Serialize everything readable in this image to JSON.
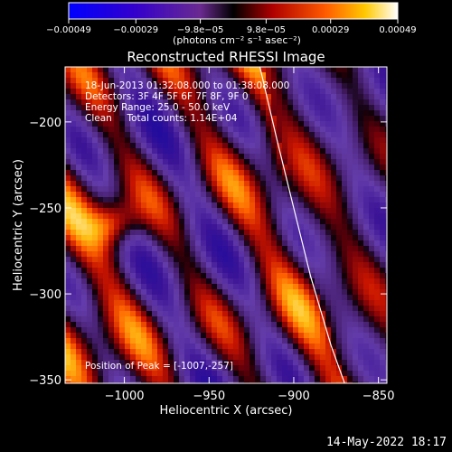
{
  "chart_data": {
    "type": "heatmap",
    "title": "Reconstructed RHESSI Image",
    "xlabel": "Heliocentric X (arcsec)",
    "ylabel": "Heliocentric Y (arcsec)",
    "xlim": [
      -1035,
      -845
    ],
    "ylim": [
      -352,
      -168
    ],
    "x_ticks": [
      -1000,
      -950,
      -900,
      -850
    ],
    "x_tick_labels": [
      "−1000",
      "−950",
      "−900",
      "−850"
    ],
    "y_ticks": [
      -350,
      -300,
      -250,
      -200
    ],
    "y_tick_labels": [
      "−350",
      "−300",
      "−250",
      "−200"
    ],
    "colorbar": {
      "range": [
        -0.00049,
        0.00049
      ],
      "ticks": [
        -0.00049,
        -0.00029,
        -9.8e-05,
        9.8e-05,
        0.00029,
        0.00049
      ],
      "tick_labels": [
        "−0.00049",
        "−0.00029",
        "−9.8e−05",
        "9.8e−05",
        "0.00029",
        "0.00049"
      ],
      "unit_label": "(photons cm⁻² s⁻¹ asec⁻²)"
    },
    "annotations": [
      "18-Jun-2013 01:32:08.000 to 01:38:08.000",
      "Detectors: 3F 4F 5F 6F 7F 8F, 9F 0",
      "Energy Range: 25.0 - 50.0 keV",
      "Clean     Total counts: 1.14E+04"
    ],
    "peak_label": "Position of Peak = [-1007,-257]",
    "peak_position": [
      -1007,
      -257
    ],
    "limb_curve": [
      [
        -920,
        -168
      ],
      [
        -910,
        -210
      ],
      [
        -900,
        -250
      ],
      [
        -890,
        -290
      ],
      [
        -878,
        -330
      ],
      [
        -870,
        -352
      ]
    ],
    "colors": {
      "background": "#000000",
      "limb": "#ffffff"
    }
  },
  "footer": {
    "date": "14-May-2022 18:17"
  }
}
